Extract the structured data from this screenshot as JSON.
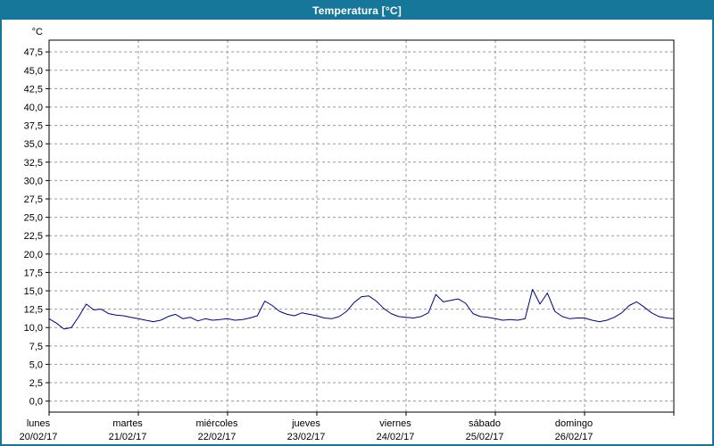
{
  "window": {
    "title": "Temperatura [°C]"
  },
  "colors": {
    "frame": "#17779a",
    "titlebar": "#17779a",
    "grid": "#9a9a9a",
    "axis": "#000000",
    "line": "#00008b",
    "background": "#ffffff"
  },
  "chart_data": {
    "type": "line",
    "title": "Temperatura [°C]",
    "ylabel": "°C",
    "xlabel": "",
    "grid": true,
    "legend_position": "none",
    "ylim": [
      -1.5,
      49.1
    ],
    "y_gridlines": {
      "start": 0,
      "end": 47.5,
      "step": 2.5
    },
    "y_tick_labels": [
      "0,0",
      "2,5",
      "5,0",
      "7,5",
      "10,0",
      "12,5",
      "15,0",
      "17,5",
      "20,0",
      "22,5",
      "25,0",
      "27,5",
      "30,0",
      "32,5",
      "35,0",
      "37,5",
      "40,0",
      "42,5",
      "45,0",
      "47,5"
    ],
    "x_total_hours": 168,
    "x_days": [
      {
        "name": "lunes",
        "date": "20/02/17"
      },
      {
        "name": "martes",
        "date": "21/02/17"
      },
      {
        "name": "miércoles",
        "date": "22/02/17"
      },
      {
        "name": "jueves",
        "date": "23/02/17"
      },
      {
        "name": "viernes",
        "date": "24/02/17"
      },
      {
        "name": "sábado",
        "date": "25/02/17"
      },
      {
        "name": "domingo",
        "date": "26/02/17"
      }
    ],
    "series": [
      {
        "name": "Temperatura",
        "color": "#00008b",
        "step_hours": 2,
        "values": [
          11.2,
          10.6,
          9.8,
          10.0,
          11.5,
          13.2,
          12.4,
          12.5,
          11.9,
          11.7,
          11.6,
          11.4,
          11.2,
          11.0,
          10.8,
          11.0,
          11.5,
          11.8,
          11.2,
          11.4,
          10.9,
          11.2,
          11.0,
          11.1,
          11.2,
          11.0,
          11.1,
          11.3,
          11.6,
          13.6,
          13.0,
          12.2,
          11.8,
          11.6,
          12.0,
          11.8,
          11.6,
          11.3,
          11.2,
          11.5,
          12.2,
          13.4,
          14.2,
          14.3,
          13.6,
          12.6,
          11.9,
          11.5,
          11.4,
          11.3,
          11.5,
          12.0,
          14.5,
          13.5,
          13.7,
          13.9,
          13.3,
          11.9,
          11.5,
          11.4,
          11.2,
          11.0,
          11.1,
          11.0,
          11.2,
          15.2,
          13.2,
          14.7,
          12.2,
          11.5,
          11.2,
          11.3,
          11.3,
          11.0,
          10.8,
          11.0,
          11.4,
          12.0,
          13.0,
          13.5,
          12.8,
          12.0,
          11.5,
          11.3,
          11.2
        ]
      }
    ]
  }
}
